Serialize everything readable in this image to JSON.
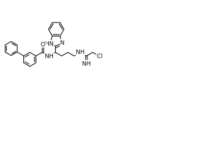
{
  "molecule": {
    "atoms": [
      {
        "label": "HN"
      },
      {
        "label": "N"
      },
      {
        "label": "O"
      },
      {
        "label": "NH"
      },
      {
        "label": "NH"
      },
      {
        "label": "NH"
      },
      {
        "label": "Cl"
      }
    ]
  }
}
